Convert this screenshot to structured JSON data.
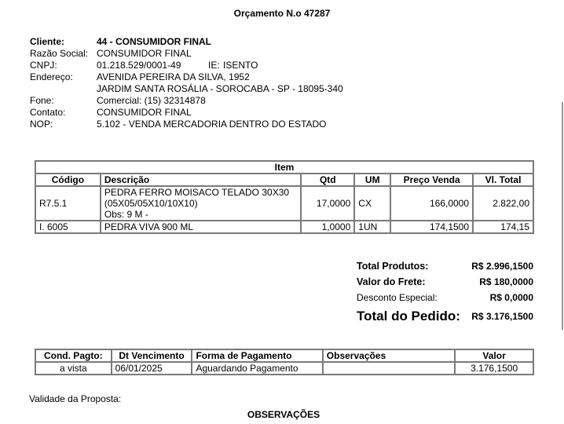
{
  "title": "Orçamento N.o 47287",
  "client": {
    "cliente_label": "Cliente:",
    "cliente": "44 - CONSUMIDOR FINAL",
    "razao_label": "Razão Social:",
    "razao": "CONSUMIDOR FINAL",
    "cnpj_label": "CNPJ:",
    "cnpj": "01.218.529/0001-49",
    "ie_label": "IE:",
    "ie": "ISENTO",
    "endereco_label": "Endereço:",
    "endereco1": "AVENIDA PEREIRA DA SILVA, 1952",
    "endereco2": "JARDIM SANTA ROSÁLIA - SOROCABA - SP - 18095-340",
    "fone_label": "Fone:",
    "fone": "Comercial: (15) 32314878",
    "contato_label": "Contato:",
    "contato": "CONSUMIDOR FINAL",
    "nop_label": "NOP:",
    "nop": "5.102 - VENDA MERCADORIA DENTRO DO ESTADO"
  },
  "items": {
    "caption": "Item",
    "headers": [
      "Código",
      "Descrição",
      "Qtd",
      "UM",
      "Preço Venda",
      "Vl. Total"
    ],
    "rows": [
      {
        "codigo": "R7.5.1",
        "desc1": "PEDRA FERRO MOISACO TELADO 30X30",
        "desc2": "(05X05/05X10/10X10)",
        "obs": "Obs: 9 M -",
        "qtd": "17,0000",
        "um": "CX",
        "preco": "166,0000",
        "total": "2.822,00"
      },
      {
        "codigo": "I. 6005",
        "desc1": "PEDRA VIVA 900 ML",
        "qtd": "1,0000",
        "um": "1UN",
        "preco": "174,1500",
        "total": "174,15"
      }
    ]
  },
  "totals": {
    "produtos_label": "Total Produtos:",
    "produtos": "R$ 2.996,1500",
    "frete_label": "Valor do Frete:",
    "frete": "R$ 180,0000",
    "desconto_label": "Desconto Especial:",
    "desconto": "R$ 0,0000",
    "pedido_label": "Total do Pedido:",
    "pedido": "R$ 3.176,1500"
  },
  "payment": {
    "headers": [
      "Cond. Pagto:",
      "Dt Vencimento",
      "Forma de Pagamento",
      "Observações",
      "Valor"
    ],
    "row": {
      "cond": "a vista",
      "venc": "06/01/2025",
      "forma": "Aguardando Pagamento",
      "obs": "",
      "valor": "3.176,1500"
    }
  },
  "validade_label": "Validade da Proposta:",
  "observacoes_title": "OBSERVAÇÕES"
}
